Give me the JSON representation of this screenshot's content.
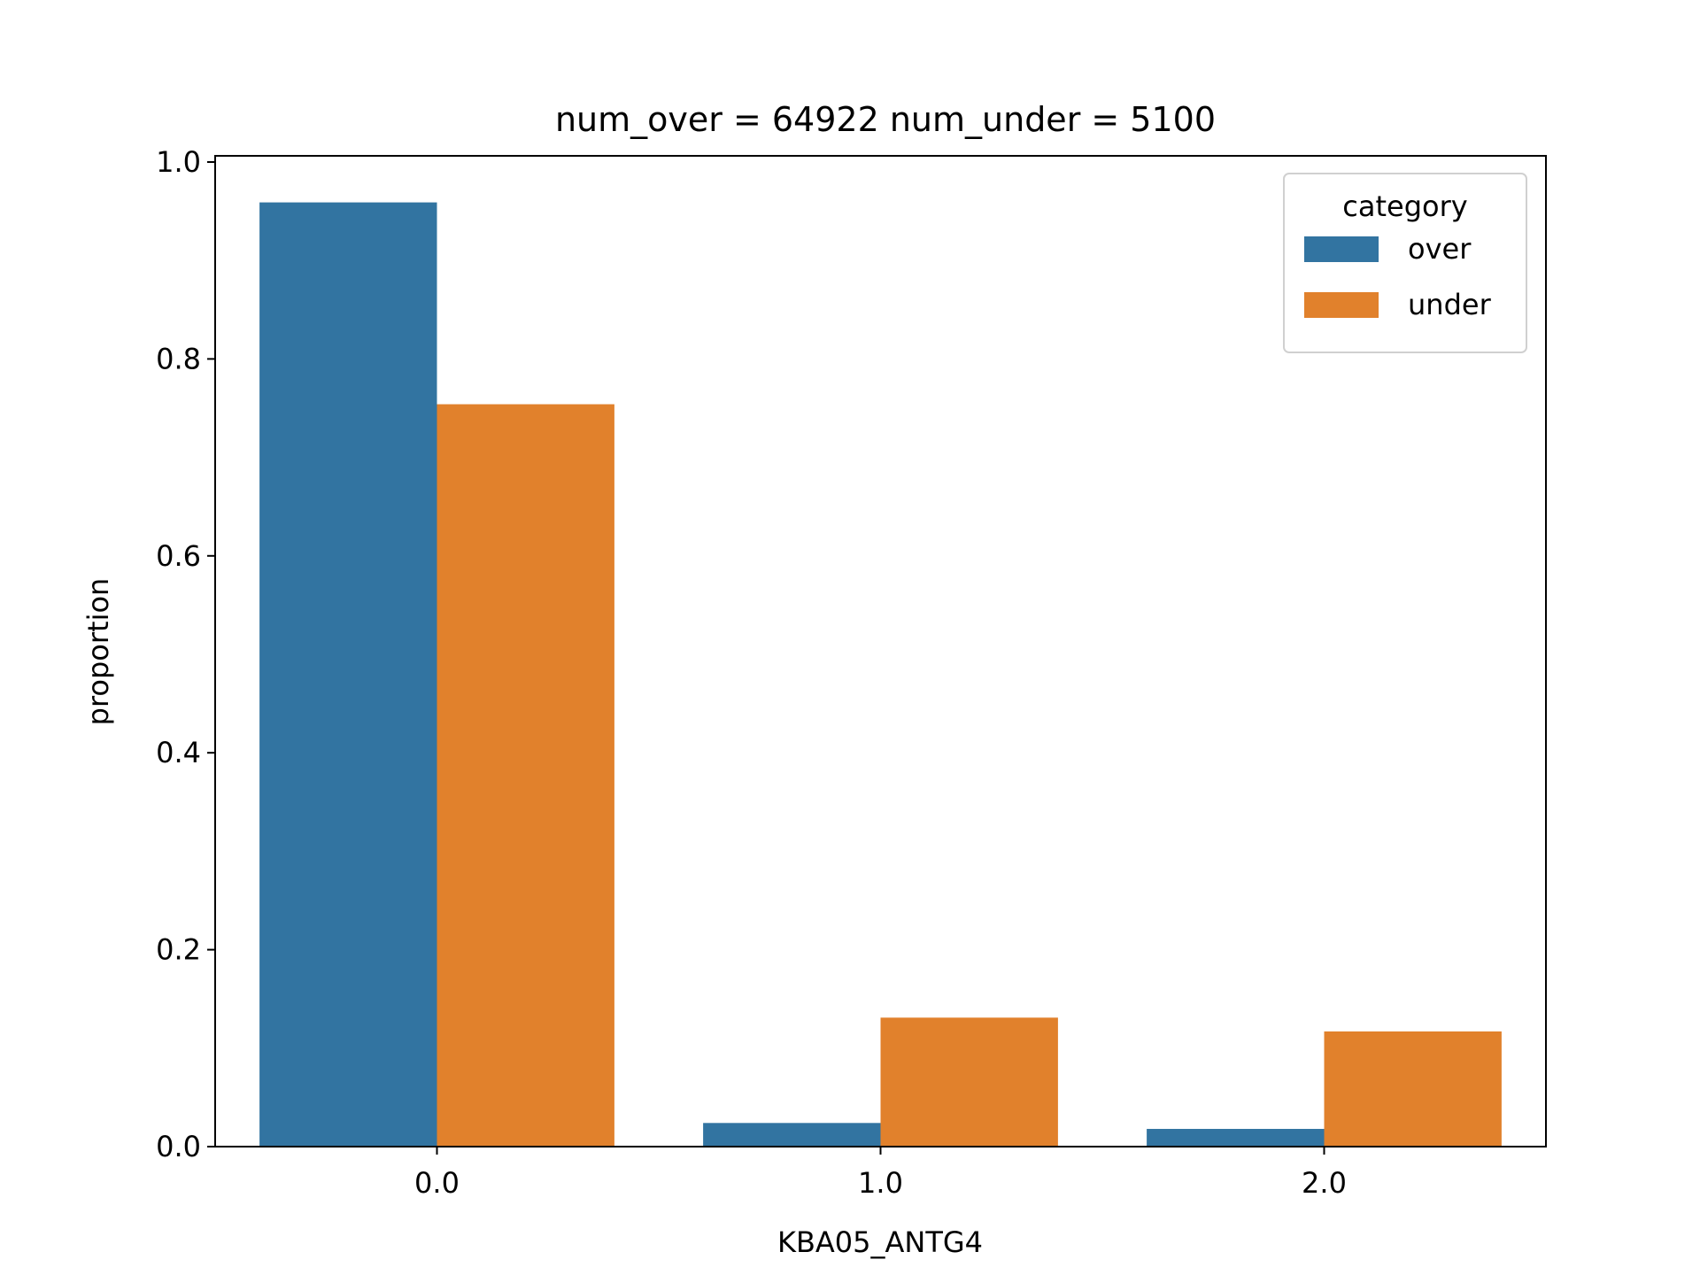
{
  "chart_data": {
    "type": "bar",
    "title": "num_over = 64922  num_under = 5100",
    "xlabel": "KBA05_ANTG4",
    "ylabel": "proportion",
    "categories": [
      "0.0",
      "1.0",
      "2.0"
    ],
    "series": [
      {
        "name": "over",
        "color": "#3274a1",
        "values": [
          0.959,
          0.024,
          0.018
        ]
      },
      {
        "name": "under",
        "color": "#e1812c",
        "values": [
          0.754,
          0.131,
          0.117
        ]
      }
    ],
    "ylim": [
      0,
      1.0
    ],
    "yticks": [
      "0.0",
      "0.2",
      "0.4",
      "0.6",
      "0.8",
      "1.0"
    ],
    "grid": false,
    "legend": {
      "title": "category",
      "placement": "top-right"
    }
  }
}
